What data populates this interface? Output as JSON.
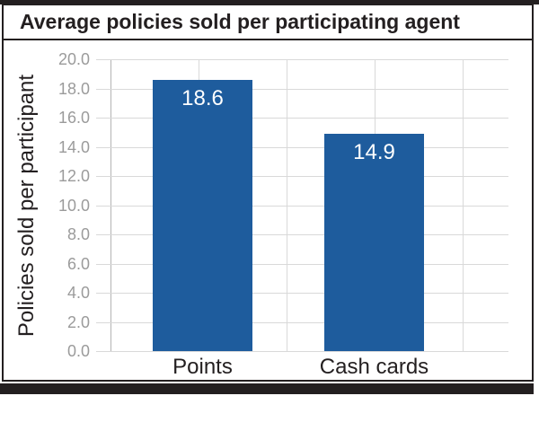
{
  "title": "Average policies sold per participating agent",
  "colors": {
    "accent_bar": "#231f20",
    "frame_border": "#231f20",
    "bar_fill": "#1e5c9d",
    "bar_label_text": "#ffffff",
    "gridline": "#d9d9d9",
    "axis_line": "#b3b3b3",
    "ytick_text": "#9b9b9b",
    "title_text": "#231f20",
    "category_text": "#231f20"
  },
  "chart_data": {
    "type": "bar",
    "title": "Average policies sold per participating agent",
    "categories": [
      "Points",
      "Cash cards"
    ],
    "values": [
      18.6,
      14.9
    ],
    "value_labels": [
      "18.6",
      "14.9"
    ],
    "xlabel": "",
    "ylabel": "Policies sold per participant",
    "ylim": [
      0,
      20
    ],
    "ytick_step": 2,
    "ytick_labels": [
      "0.0",
      "2.0",
      "4.0",
      "6.0",
      "8.0",
      "10.0",
      "12.0",
      "14.0",
      "16.0",
      "18.0",
      "20.0"
    ],
    "grid": true,
    "legend": false,
    "bar_color": "#1e5c9d",
    "value_label_position": "inside-top"
  }
}
